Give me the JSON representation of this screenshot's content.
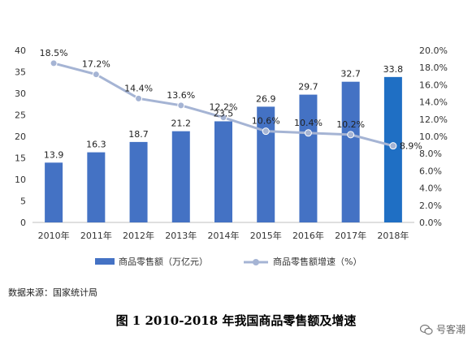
{
  "chart_data": {
    "type": "bar",
    "categories": [
      "2010年",
      "2011年",
      "2012年",
      "2013年",
      "2014年",
      "2015年",
      "2016年",
      "2017年",
      "2018年"
    ],
    "series": [
      {
        "name": "商品零售额（万亿元）",
        "type": "bar",
        "axis": "left",
        "values": [
          13.9,
          16.3,
          18.7,
          21.2,
          23.5,
          26.9,
          29.7,
          32.7,
          33.8
        ],
        "labels": [
          "13.9",
          "16.3",
          "18.7",
          "21.2",
          "23.5",
          "26.9",
          "29.7",
          "32.7",
          "33.8"
        ]
      },
      {
        "name": "商品零售额增速（%）",
        "type": "line",
        "axis": "right",
        "values": [
          18.5,
          17.2,
          14.4,
          13.6,
          12.2,
          10.6,
          10.4,
          10.2,
          8.9
        ],
        "labels": [
          "18.5%",
          "17.2%",
          "14.4%",
          "13.6%",
          "12.2%",
          "10.6%",
          "10.4%",
          "10.2%",
          "8.9%"
        ]
      }
    ],
    "ylim_left": [
      0,
      40
    ],
    "yticks_left": [
      "0",
      "5",
      "10",
      "15",
      "20",
      "25",
      "30",
      "35",
      "40"
    ],
    "ylim_right": [
      0,
      20
    ],
    "yticks_right": [
      "0.0%",
      "2.0%",
      "4.0%",
      "6.0%",
      "8.0%",
      "10.0%",
      "12.0%",
      "14.0%",
      "16.0%",
      "18.0%",
      "20.0%"
    ],
    "grid": false,
    "legend": "bottom",
    "colors": {
      "bar": "#4472c4",
      "bar_last": "#1f6fc4",
      "line": "#a5b4d4"
    }
  },
  "source": "数据来源：国家统计局",
  "caption": "图 1 2010-2018 年我国商品零售额及增速",
  "watermark": "号客潮",
  "watermark_icon": "wechat-icon"
}
